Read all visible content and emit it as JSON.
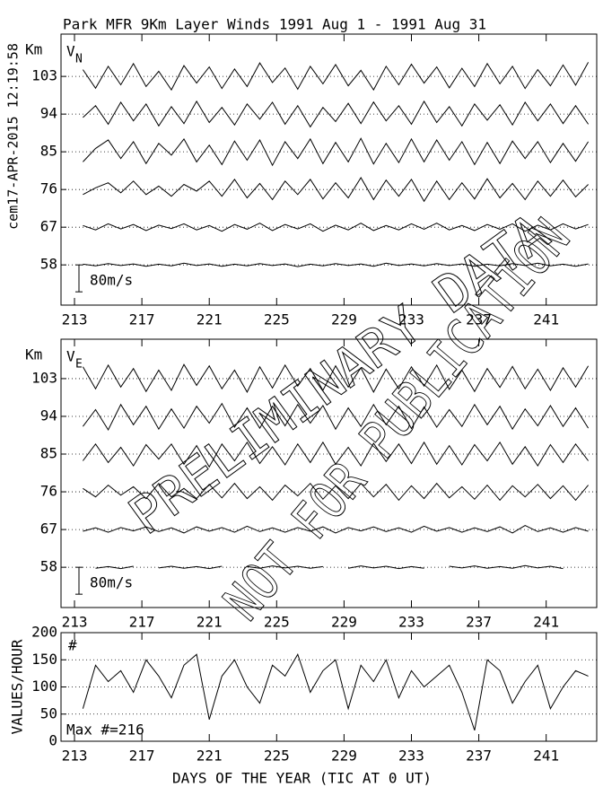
{
  "side_label": "cem17-APR-2015 12:19:58",
  "watermark": [
    "PRELIMINARY DATA",
    "NOT FOR PUBLICATION"
  ],
  "chart_data": [
    {
      "type": "trace",
      "title": "Park MFR 9Km Layer Winds 1991 Aug  1 - 1991 Aug 31",
      "y_label": "Km",
      "panel_label": "V",
      "panel_label_sub": "N",
      "xlim": [
        212.2,
        244
      ],
      "xticks": [
        213,
        217,
        221,
        225,
        229,
        233,
        237,
        241
      ],
      "ylim": [
        48.4,
        113.1
      ],
      "yticks": [
        58,
        67,
        76,
        85,
        94,
        103
      ],
      "grid": true,
      "scale_bar": {
        "value": 80,
        "label": "80m/s"
      },
      "x": [
        213.5,
        214.25,
        215,
        215.75,
        216.5,
        217.25,
        218,
        218.75,
        219.5,
        220.25,
        221,
        221.75,
        222.5,
        223.25,
        224,
        224.75,
        225.5,
        226.25,
        227,
        227.75,
        228.5,
        229.25,
        230,
        230.75,
        231.5,
        232.25,
        233,
        233.75,
        234.5,
        235.25,
        236,
        236.75,
        237.5,
        238.25,
        239,
        239.75,
        240.5,
        241.25,
        242,
        242.75,
        243.5
      ],
      "series": [
        {
          "baseline": 103,
          "color": "#000000",
          "values": [
            20,
            -35,
            30,
            -25,
            38,
            -30,
            15,
            -40,
            32,
            -20,
            28,
            -36,
            22,
            -30,
            40,
            -18,
            25,
            -38,
            30,
            -22,
            35,
            -28,
            18,
            -40,
            30,
            -25,
            36,
            -20,
            28,
            -34,
            24,
            -30,
            38,
            -22,
            30,
            -36,
            20,
            -28,
            34,
            -26,
            42
          ]
        },
        {
          "baseline": 94,
          "color": "#000000",
          "values": [
            -10,
            25,
            -30,
            35,
            -20,
            30,
            -35,
            22,
            -28,
            38,
            -25,
            20,
            -32,
            30,
            -15,
            35,
            -30,
            25,
            -38,
            20,
            -22,
            32,
            -28,
            36,
            -20,
            25,
            -30,
            38,
            -25,
            22,
            -35,
            30,
            -18,
            28,
            -32,
            35,
            -20,
            30,
            -28,
            25,
            -30
          ]
        },
        {
          "baseline": 85,
          "color": "#000000",
          "values": [
            -30,
            10,
            35,
            -20,
            30,
            -35,
            25,
            -10,
            38,
            -30,
            20,
            -38,
            32,
            -25,
            35,
            -40,
            30,
            -20,
            38,
            -35,
            28,
            -30,
            40,
            -36,
            25,
            -32,
            38,
            -30,
            35,
            -25,
            30,
            -38,
            28,
            -35,
            32,
            -20,
            30,
            -32,
            25,
            -28,
            30
          ]
        },
        {
          "baseline": 76,
          "color": "#000000",
          "values": [
            -15,
            5,
            20,
            -10,
            25,
            -15,
            10,
            -20,
            15,
            -5,
            25,
            -20,
            30,
            -25,
            18,
            -30,
            25,
            -15,
            30,
            -28,
            20,
            -25,
            35,
            -30,
            28,
            -20,
            30,
            -35,
            25,
            -30,
            20,
            -28,
            32,
            -25,
            18,
            -30,
            25,
            -20,
            28,
            -22,
            15
          ]
        },
        {
          "baseline": 67,
          "color": "#000000",
          "values": [
            5,
            -8,
            10,
            -5,
            8,
            -10,
            6,
            -4,
            10,
            -8,
            5,
            -12,
            8,
            -6,
            12,
            -10,
            8,
            -5,
            10,
            -12,
            6,
            -8,
            12,
            -10,
            5,
            -8,
            10,
            -6,
            12,
            -8,
            5,
            -10,
            8,
            -6,
            10,
            -12,
            6,
            -8,
            10,
            -5,
            8
          ]
        },
        {
          "baseline": 58,
          "color": "#000000",
          "values": [
            2,
            -3,
            4,
            -2,
            3,
            -4,
            2,
            -3,
            5,
            -2,
            3,
            -4,
            2,
            -3,
            4,
            -2,
            3,
            -5,
            2,
            -3,
            4,
            -2,
            3,
            -4,
            5,
            -2,
            3,
            -3,
            4,
            -2,
            3,
            -4,
            2,
            -3,
            4,
            -2,
            5,
            -3,
            2,
            -4,
            3
          ]
        }
      ]
    },
    {
      "type": "trace",
      "y_label": "Km",
      "panel_label": "V",
      "panel_label_sub": "E",
      "xlim": [
        212.2,
        244
      ],
      "xticks": [
        213,
        217,
        221,
        225,
        229,
        233,
        237,
        241
      ],
      "ylim": [
        48.4,
        112.4
      ],
      "yticks": [
        58,
        67,
        76,
        85,
        94,
        103
      ],
      "grid": true,
      "scale_bar": {
        "value": 80,
        "label": "80m/s"
      },
      "x": [
        213.5,
        214.25,
        215,
        215.75,
        216.5,
        217.25,
        218,
        218.75,
        219.5,
        220.25,
        221,
        221.75,
        222.5,
        223.25,
        224,
        224.75,
        225.5,
        226.25,
        227,
        227.75,
        228.5,
        229.25,
        230,
        230.75,
        231.5,
        232.25,
        233,
        233.75,
        234.5,
        235.25,
        236,
        236.75,
        237.5,
        238.25,
        239,
        239.75,
        240.5,
        241.25,
        242,
        242.75,
        243.5
      ],
      "series": [
        {
          "baseline": 103,
          "color": "#000000",
          "values": [
            35,
            -30,
            40,
            -25,
            30,
            -38,
            25,
            -35,
            42,
            -20,
            38,
            -30,
            25,
            -40,
            35,
            -28,
            40,
            -22,
            30,
            -35,
            38,
            -25,
            32,
            -40,
            28,
            -30,
            35,
            -22,
            40,
            -32,
            25,
            -38,
            30,
            -26,
            36,
            -30,
            28,
            -35,
            32,
            -25,
            38
          ]
        },
        {
          "baseline": 94,
          "color": "#000000",
          "values": [
            -30,
            20,
            -40,
            35,
            -25,
            30,
            -38,
            22,
            -35,
            30,
            -20,
            38,
            -32,
            25,
            -35,
            30,
            -28,
            35,
            -20,
            32,
            -38,
            25,
            -30,
            35,
            -25,
            30,
            -36,
            28,
            -32,
            20,
            -30,
            35,
            -25,
            30,
            -38,
            22,
            -28,
            32,
            -30,
            25,
            -35
          ]
        },
        {
          "baseline": 85,
          "color": "#000000",
          "values": [
            -20,
            30,
            -25,
            20,
            -35,
            28,
            -15,
            30,
            -30,
            25,
            -38,
            30,
            -20,
            35,
            -28,
            22,
            -32,
            30,
            -25,
            35,
            -30,
            20,
            -35,
            32,
            -22,
            30,
            -28,
            35,
            -30,
            25,
            -32,
            28,
            -20,
            35,
            -30,
            22,
            -35,
            28,
            -25,
            30,
            -20
          ]
        },
        {
          "baseline": 76,
          "color": "#000000",
          "values": [
            10,
            -15,
            20,
            -10,
            15,
            -20,
            25,
            -15,
            10,
            -20,
            22,
            -18,
            25,
            -20,
            15,
            -25,
            20,
            -12,
            25,
            -22,
            18,
            -20,
            25,
            -15,
            22,
            -25,
            18,
            -20,
            25,
            -18,
            15,
            -22,
            20,
            -25,
            18,
            -15,
            22,
            -20,
            18,
            -25,
            20
          ]
        },
        {
          "baseline": 67,
          "color": "#000000",
          "values": [
            -5,
            5,
            -8,
            6,
            -4,
            8,
            -6,
            5,
            -10,
            8,
            -5,
            6,
            -8,
            10,
            -6,
            5,
            -8,
            6,
            -5,
            8,
            -10,
            6,
            -4,
            8,
            -6,
            5,
            -8,
            10,
            -5,
            6,
            -8,
            5,
            -6,
            8,
            -10,
            12,
            -6,
            5,
            -8,
            6,
            -5
          ]
        },
        {
          "baseline": 58,
          "color": "#000000",
          "values": [
            null,
            -3,
            2,
            -4,
            3,
            null,
            -2,
            3,
            -3,
            2,
            -4,
            3,
            null,
            2,
            -3,
            4,
            -2,
            3,
            -3,
            2,
            null,
            -3,
            4,
            -2,
            3,
            -4,
            2,
            -3,
            null,
            3,
            -2,
            4,
            -3,
            2,
            -3,
            5,
            -2,
            3,
            -4,
            null,
            3
          ]
        }
      ]
    },
    {
      "type": "line",
      "y_label": "VALUES/HOUR",
      "x_label": "DAYS OF THE YEAR (TIC AT 0 UT)",
      "annotations": [
        "#",
        "Max #=216"
      ],
      "xlim": [
        212.2,
        244
      ],
      "xticks": [
        213,
        217,
        221,
        225,
        229,
        233,
        237,
        241
      ],
      "ylim": [
        0,
        200
      ],
      "yticks": [
        0,
        50,
        100,
        150,
        200
      ],
      "grid": true,
      "color": "#000000",
      "x": [
        213.5,
        214.25,
        215,
        215.75,
        216.5,
        217.25,
        218,
        218.75,
        219.5,
        220.25,
        221,
        221.75,
        222.5,
        223.25,
        224,
        224.75,
        225.5,
        226.25,
        227,
        227.75,
        228.5,
        229.25,
        230,
        230.75,
        231.5,
        232.25,
        233,
        233.75,
        234.5,
        235.25,
        236,
        236.75,
        237.5,
        238.25,
        239,
        239.75,
        240.5,
        241.25,
        242,
        242.75,
        243.5
      ],
      "values": [
        60,
        140,
        110,
        130,
        90,
        150,
        120,
        80,
        140,
        160,
        40,
        120,
        150,
        100,
        70,
        140,
        120,
        160,
        90,
        130,
        150,
        60,
        140,
        110,
        150,
        80,
        130,
        100,
        120,
        140,
        90,
        20,
        150,
        130,
        70,
        110,
        140,
        60,
        100,
        130,
        120
      ]
    }
  ]
}
